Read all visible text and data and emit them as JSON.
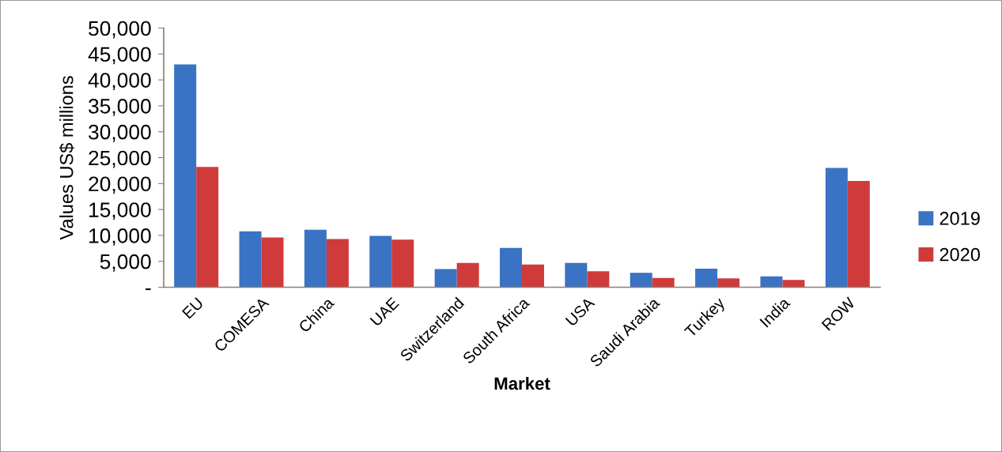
{
  "chart_data": {
    "type": "bar",
    "xlabel": "Market",
    "ylabel": "Values US$ millions",
    "categories": [
      "EU",
      "COMESA",
      "China",
      "UAE",
      "Switzerland",
      "South Africa",
      "USA",
      "Saudi Arabia",
      "Turkey",
      "India",
      "ROW"
    ],
    "series": [
      {
        "name": "2019",
        "color": "#3a72c4",
        "values": [
          43000,
          10800,
          11100,
          9900,
          3500,
          7600,
          4700,
          2800,
          3600,
          2100,
          23000
        ]
      },
      {
        "name": "2020",
        "color": "#cf3b3b",
        "values": [
          23200,
          9600,
          9300,
          9200,
          4700,
          4400,
          3100,
          1800,
          1700,
          1400,
          20500
        ]
      }
    ],
    "ylim": [
      0,
      50000
    ],
    "yticks": [
      {
        "value": 0,
        "label": "-"
      },
      {
        "value": 5000,
        "label": "5,000"
      },
      {
        "value": 10000,
        "label": "10,000"
      },
      {
        "value": 15000,
        "label": "15,000"
      },
      {
        "value": 20000,
        "label": "20,000"
      },
      {
        "value": 25000,
        "label": "25,000"
      },
      {
        "value": 30000,
        "label": "30,000"
      },
      {
        "value": 35000,
        "label": "35,000"
      },
      {
        "value": 40000,
        "label": "40,000"
      },
      {
        "value": 45000,
        "label": "45,000"
      },
      {
        "value": 50000,
        "label": "50,000"
      }
    ],
    "grid": false,
    "legend": "right"
  }
}
